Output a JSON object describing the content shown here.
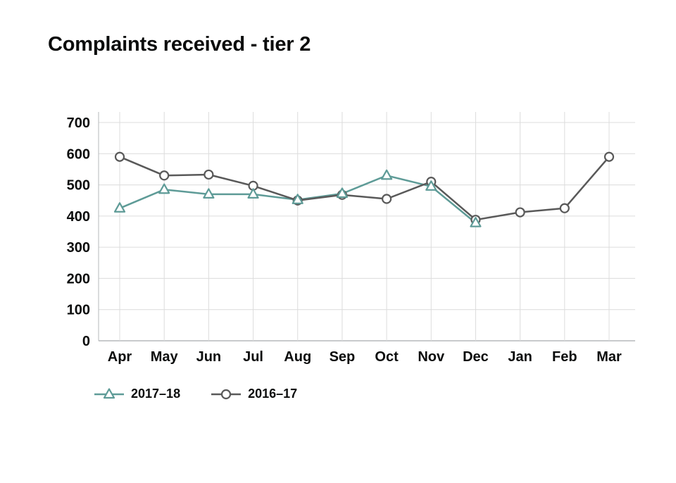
{
  "page": {
    "title": "Complaints received - tier 2"
  },
  "chart_data": {
    "type": "line",
    "title": "Complaints received - tier 2",
    "categories": [
      "Apr",
      "May",
      "Jun",
      "Jul",
      "Aug",
      "Sep",
      "Oct",
      "Nov",
      "Dec",
      "Jan",
      "Feb",
      "Mar"
    ],
    "series": [
      {
        "name": "2017–18",
        "marker": "triangle",
        "color": "#5e9b97",
        "values": [
          425,
          485,
          470,
          470,
          452,
          472,
          530,
          495,
          378,
          null,
          null,
          null
        ]
      },
      {
        "name": "2016–17",
        "marker": "circle",
        "color": "#595959",
        "values": [
          590,
          530,
          533,
          497,
          450,
          468,
          455,
          510,
          388,
          412,
          425,
          590
        ]
      }
    ],
    "xlabel": "",
    "ylabel": "",
    "ylim": [
      0,
      700
    ],
    "ytick_step": 100,
    "yticks": [
      0,
      100,
      200,
      300,
      400,
      500,
      600,
      700
    ],
    "grid": true,
    "legend_position": "bottom",
    "grid_color": "#dcdcdc",
    "axis_color": "#b6b9bb",
    "text_color": "#0b0c0c"
  }
}
